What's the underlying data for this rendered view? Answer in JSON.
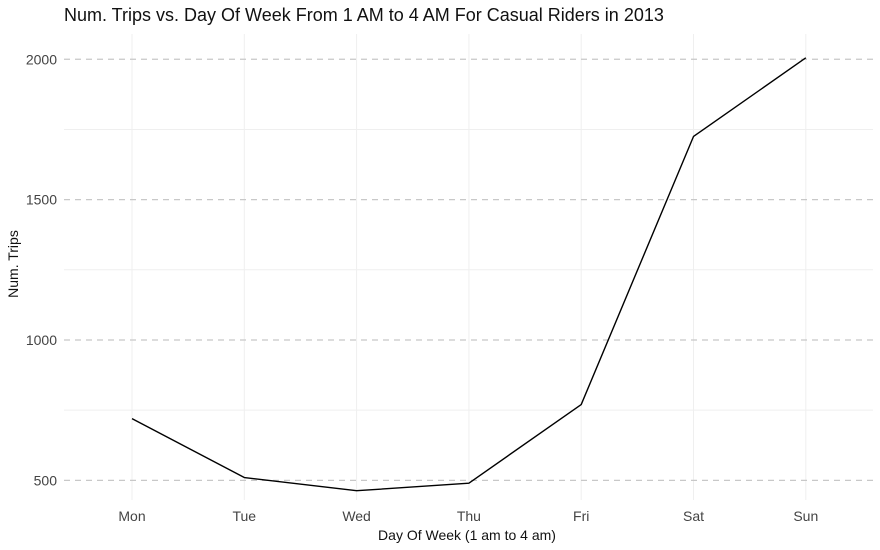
{
  "chart_data": {
    "type": "line",
    "title": "Num. Trips vs. Day Of Week From 1 AM to 4 AM For Casual Riders in 2013",
    "xlabel": "Day Of Week (1 am to 4 am)",
    "ylabel": "Num. Trips",
    "categories": [
      "Mon",
      "Tue",
      "Wed",
      "Thu",
      "Fri",
      "Sat",
      "Sun"
    ],
    "values": [
      720,
      510,
      463,
      490,
      770,
      1725,
      2005
    ],
    "yticks": [
      "500",
      "1000",
      "1500",
      "2000"
    ],
    "ylim": [
      430,
      2090
    ],
    "grid": true,
    "major_gridline_style": "dashed",
    "line_color": "#000000",
    "grid_color": "#c8c8c8",
    "minor_grid_color": "#efefef"
  }
}
